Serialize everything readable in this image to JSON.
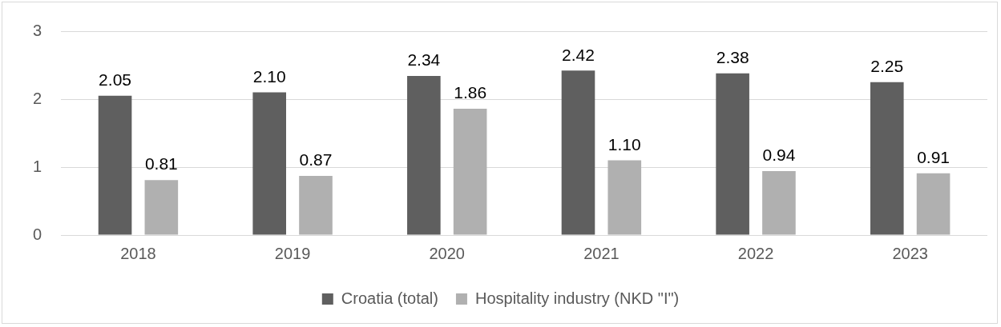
{
  "chart_data": {
    "type": "bar",
    "categories": [
      "2018",
      "2019",
      "2020",
      "2021",
      "2022",
      "2023"
    ],
    "series": [
      {
        "name": "Croatia (total)",
        "color": "#5f5f5f",
        "values": [
          2.05,
          2.1,
          2.34,
          2.42,
          2.38,
          2.25
        ],
        "value_labels": [
          "2.05",
          "2.10",
          "2.34",
          "2.42",
          "2.38",
          "2.25"
        ]
      },
      {
        "name": "Hospitality industry (NKD \"I\")",
        "color": "#b0b0b0",
        "values": [
          0.81,
          0.87,
          1.86,
          1.1,
          0.94,
          0.91
        ],
        "value_labels": [
          "0.81",
          "0.87",
          "1.86",
          "1.10",
          "0.94",
          "0.91"
        ]
      }
    ],
    "ylim": [
      0,
      3
    ],
    "yticks": [
      0,
      1,
      2,
      3
    ],
    "grid": "y",
    "legend": "bottom"
  }
}
